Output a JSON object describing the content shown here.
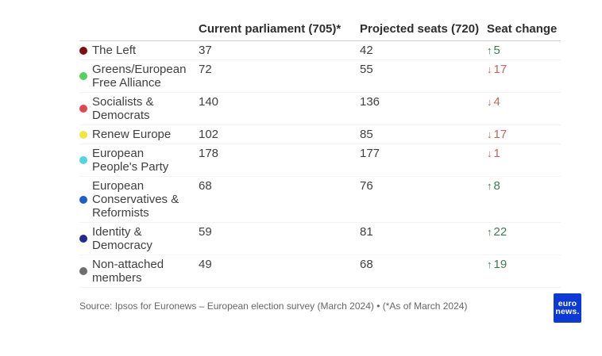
{
  "chart_data": {
    "type": "table",
    "title": "",
    "columns": [
      "",
      "Current parliament (705)*",
      "Projected seats (720)",
      "Seat change"
    ],
    "rows": [
      {
        "party": "The Left",
        "dot_color": "#7d0f12",
        "current": "37",
        "projected": "42",
        "arrow": "↑",
        "change": "5",
        "direction": "up"
      },
      {
        "party": "Greens/European Free Alliance",
        "dot_color": "#55d058",
        "current": "72",
        "projected": "55",
        "arrow": "↓",
        "change": "17",
        "direction": "down"
      },
      {
        "party": "Socialists & Democrats",
        "dot_color": "#e2464f",
        "current": "140",
        "projected": "136",
        "arrow": "↓",
        "change": "4",
        "direction": "down"
      },
      {
        "party": "Renew Europe",
        "dot_color": "#f0e63c",
        "current": "102",
        "projected": "85",
        "arrow": "↓",
        "change": "17",
        "direction": "down"
      },
      {
        "party": "European People's Party",
        "dot_color": "#52d4e6",
        "current": "178",
        "projected": "177",
        "arrow": "↓",
        "change": "1",
        "direction": "down"
      },
      {
        "party": "European Conservatives & Reformists",
        "dot_color": "#1d5fc8",
        "current": "68",
        "projected": "76",
        "arrow": "↑",
        "change": "8",
        "direction": "up"
      },
      {
        "party": "Identity & Democracy",
        "dot_color": "#222c8e",
        "current": "59",
        "projected": "81",
        "arrow": "↑",
        "change": "22",
        "direction": "up"
      },
      {
        "party": "Non-attached members",
        "dot_color": "#6e6e6e",
        "current": "49",
        "projected": "68",
        "arrow": "↑",
        "change": "19",
        "direction": "up"
      }
    ]
  },
  "change_colors": {
    "up": "#3d7a55",
    "down": "#c4655f"
  },
  "source": "Source: Ipsos for Euronews – European election survey (March 2024) • (*As of March 2024)",
  "logo": {
    "line1": "euro",
    "line2": "news.",
    "bg_color": "#0d39d7"
  }
}
